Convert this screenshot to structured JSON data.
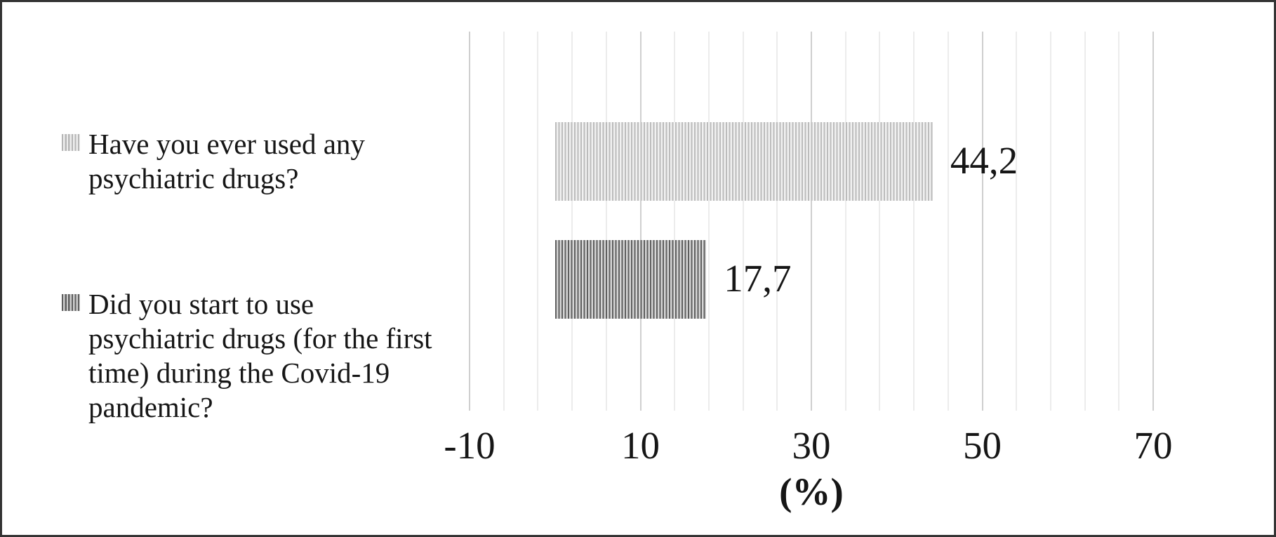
{
  "figure": {
    "background": "#ffffff",
    "border_color": "#333333",
    "text_color": "#161616"
  },
  "chart_data": {
    "type": "bar",
    "orientation": "horizontal",
    "title": "",
    "xlabel": "(%)",
    "ylabel": "",
    "xlim": [
      -10,
      70
    ],
    "x_major_unit": 20,
    "x_minor_unit": 4,
    "x_major_ticks": [
      -10,
      10,
      30,
      50,
      70
    ],
    "x_tick_labels": [
      "-10",
      "10",
      "30",
      "50",
      "70"
    ],
    "grid": {
      "major_vertical": true,
      "minor_vertical": true
    },
    "legend_position": "left",
    "number_format": "comma-decimal",
    "series": [
      {
        "name": "Have you ever used any psychiatric drugs?",
        "value": 44.2,
        "data_label": "44,2",
        "pattern": "light-gray-vertical-stripes",
        "stripe_color": "#bcbcbc",
        "stripe_background": "#f1f1f1"
      },
      {
        "name": "Did you start to use psychiatric drugs (for the first time) during the Covid-19 pandemic?",
        "value": 17.7,
        "data_label": "17,7",
        "pattern": "dark-gray-vertical-stripes",
        "stripe_color": "#5e5e5e",
        "stripe_background": "#d6d6d6"
      }
    ],
    "gridline_major_color": "#cfcfcf",
    "gridline_minor_color": "#ececec"
  }
}
